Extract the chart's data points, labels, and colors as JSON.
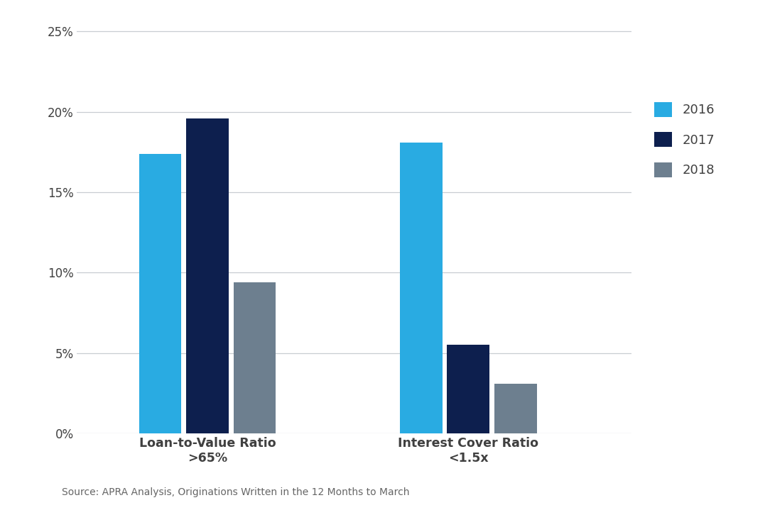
{
  "categories": [
    "Loan-to-Value Ratio\n>65%",
    "Interest Cover Ratio\n<1.5x"
  ],
  "series": {
    "2016": [
      0.174,
      0.181
    ],
    "2017": [
      0.196,
      0.055
    ],
    "2018": [
      0.094,
      0.031
    ]
  },
  "colors": {
    "2016": "#29ABE2",
    "2017": "#0D1F4E",
    "2018": "#6D7F8F"
  },
  "legend_labels": [
    "2016",
    "2017",
    "2018"
  ],
  "ylim": [
    0,
    0.26
  ],
  "yticks": [
    0.0,
    0.05,
    0.1,
    0.15,
    0.2,
    0.25
  ],
  "ytick_labels": [
    "0%",
    "5%",
    "10%",
    "15%",
    "20%",
    "25%"
  ],
  "source_text": "Source: APRA Analysis, Originations Written in the 12 Months to March",
  "bar_width": 0.13,
  "background_color": "#ffffff",
  "grid_color": "#c8cdd2",
  "text_color": "#404040"
}
